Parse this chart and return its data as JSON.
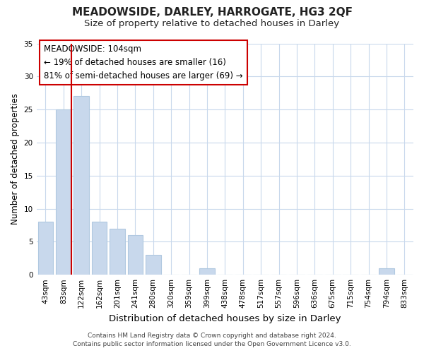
{
  "title": "MEADOWSIDE, DARLEY, HARROGATE, HG3 2QF",
  "subtitle": "Size of property relative to detached houses in Darley",
  "xlabel": "Distribution of detached houses by size in Darley",
  "ylabel": "Number of detached properties",
  "bar_labels": [
    "43sqm",
    "83sqm",
    "122sqm",
    "162sqm",
    "201sqm",
    "241sqm",
    "280sqm",
    "320sqm",
    "359sqm",
    "399sqm",
    "438sqm",
    "478sqm",
    "517sqm",
    "557sqm",
    "596sqm",
    "636sqm",
    "675sqm",
    "715sqm",
    "754sqm",
    "794sqm",
    "833sqm"
  ],
  "bar_values": [
    8,
    25,
    27,
    8,
    7,
    6,
    3,
    0,
    0,
    1,
    0,
    0,
    0,
    0,
    0,
    0,
    0,
    0,
    0,
    1,
    0
  ],
  "bar_color": "#c8d8ec",
  "bar_edge_color": "#b0c8e0",
  "vline_color": "#cc0000",
  "annotation_line1": "MEADOWSIDE: 104sqm",
  "annotation_line2": "← 19% of detached houses are smaller (16)",
  "annotation_line3": "81% of semi-detached houses are larger (69) →",
  "ylim": [
    0,
    35
  ],
  "yticks": [
    0,
    5,
    10,
    15,
    20,
    25,
    30,
    35
  ],
  "background_color": "#ffffff",
  "grid_color": "#c8d8ec",
  "footer_line1": "Contains HM Land Registry data © Crown copyright and database right 2024.",
  "footer_line2": "Contains public sector information licensed under the Open Government Licence v3.0.",
  "title_fontsize": 11,
  "subtitle_fontsize": 9.5,
  "xlabel_fontsize": 9.5,
  "ylabel_fontsize": 8.5,
  "tick_fontsize": 7.5,
  "annotation_fontsize": 8.5,
  "footer_fontsize": 6.5
}
